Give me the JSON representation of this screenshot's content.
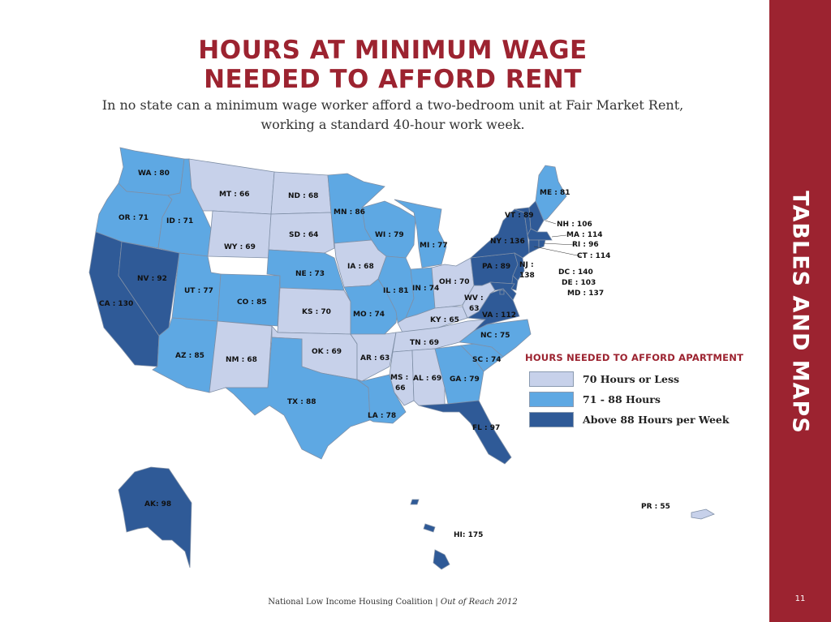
{
  "header": {
    "title_line1": "HOURS AT MINIMUM WAGE",
    "title_line2": "NEEDED TO AFFORD RENT",
    "subtitle_line1": "In no state can a minimum wage worker afford a two-bedroom unit at Fair Market Rent,",
    "subtitle_line2": "working a standard 40-hour work week."
  },
  "sidebar": {
    "title": "TABLES AND MAPS"
  },
  "footer": {
    "org": "National Low Income Housing Coalition | ",
    "publication": "Out of Reach 2012",
    "page": "11"
  },
  "colors": {
    "low": "#c7d1ea",
    "mid": "#5ea8e3",
    "high": "#2f5a97",
    "accent": "#9c2330"
  },
  "legend": {
    "title": "HOURS NEEDED TO AFFORD APARTMENT",
    "items": [
      {
        "label": "70 Hours or Less",
        "color": "#c7d1ea"
      },
      {
        "label": "71 - 88 Hours",
        "color": "#5ea8e3"
      },
      {
        "label": "Above 88 Hours per Week",
        "color": "#2f5a97"
      }
    ]
  },
  "states": {
    "WA": {
      "label": "WA : 80",
      "hours": 80
    },
    "OR": {
      "label": "OR : 71",
      "hours": 71
    },
    "CA": {
      "label": "CA : 130",
      "hours": 130
    },
    "NV": {
      "label": "NV : 92",
      "hours": 92
    },
    "ID": {
      "label": "ID : 71",
      "hours": 71
    },
    "MT": {
      "label": "MT : 66",
      "hours": 66
    },
    "WY": {
      "label": "WY : 69",
      "hours": 69
    },
    "UT": {
      "label": "UT : 77",
      "hours": 77
    },
    "CO": {
      "label": "CO : 85",
      "hours": 85
    },
    "AZ": {
      "label": "AZ : 85",
      "hours": 85
    },
    "NM": {
      "label": "NM : 68",
      "hours": 68
    },
    "ND": {
      "label": "ND : 68",
      "hours": 68
    },
    "SD": {
      "label": "SD : 64",
      "hours": 64
    },
    "NE": {
      "label": "NE : 73",
      "hours": 73
    },
    "KS": {
      "label": "KS : 70",
      "hours": 70
    },
    "OK": {
      "label": "OK : 69",
      "hours": 69
    },
    "TX": {
      "label": "TX : 88",
      "hours": 88
    },
    "MN": {
      "label": "MN : 86",
      "hours": 86
    },
    "IA": {
      "label": "IA : 68",
      "hours": 68
    },
    "MO": {
      "label": "MO : 74",
      "hours": 74
    },
    "AR": {
      "label": "AR : 63",
      "hours": 63
    },
    "LA": {
      "label": "LA : 78",
      "hours": 78
    },
    "WI": {
      "label": "WI : 79",
      "hours": 79
    },
    "IL": {
      "label": "IL : 81",
      "hours": 81
    },
    "MI": {
      "label": "MI : 77",
      "hours": 77
    },
    "IN": {
      "label": "IN : 74",
      "hours": 74
    },
    "OH": {
      "label": "OH : 70",
      "hours": 70
    },
    "KY": {
      "label": "KY : 65",
      "hours": 65
    },
    "TN": {
      "label": "TN : 69",
      "hours": 69
    },
    "MS": {
      "label": "MS :",
      "label2": "66",
      "hours": 66
    },
    "AL": {
      "label": "AL : 69",
      "hours": 69
    },
    "GA": {
      "label": "GA : 79",
      "hours": 79
    },
    "FL": {
      "label": "FL : 97",
      "hours": 97
    },
    "SC": {
      "label": "SC : 74",
      "hours": 74
    },
    "NC": {
      "label": "NC : 75",
      "hours": 75
    },
    "VA": {
      "label": "VA : 112",
      "hours": 112
    },
    "WV": {
      "label": "WV :",
      "label2": "63",
      "hours": 63
    },
    "PA": {
      "label": "PA : 89",
      "hours": 89
    },
    "NY": {
      "label": "NY : 136",
      "hours": 136
    },
    "VT": {
      "label": "VT : 89",
      "hours": 89
    },
    "ME": {
      "label": "ME : 81",
      "hours": 81
    },
    "NJ": {
      "label": "NJ :",
      "label2": "138",
      "hours": 138
    },
    "NH": {
      "label": "NH : 106",
      "hours": 106
    },
    "MA": {
      "label": "MA : 114",
      "hours": 114
    },
    "RI": {
      "label": "RI : 96",
      "hours": 96
    },
    "CT": {
      "label": "CT : 114",
      "hours": 114
    },
    "DC": {
      "label": "DC : 140",
      "hours": 140
    },
    "DE": {
      "label": "DE : 103",
      "hours": 103
    },
    "MD": {
      "label": "MD : 137",
      "hours": 137
    },
    "AK": {
      "label": "AK:  98",
      "hours": 98
    },
    "HI": {
      "label": "HI: 175",
      "hours": 175
    },
    "PR": {
      "label": "PR : 55",
      "hours": 55
    }
  }
}
